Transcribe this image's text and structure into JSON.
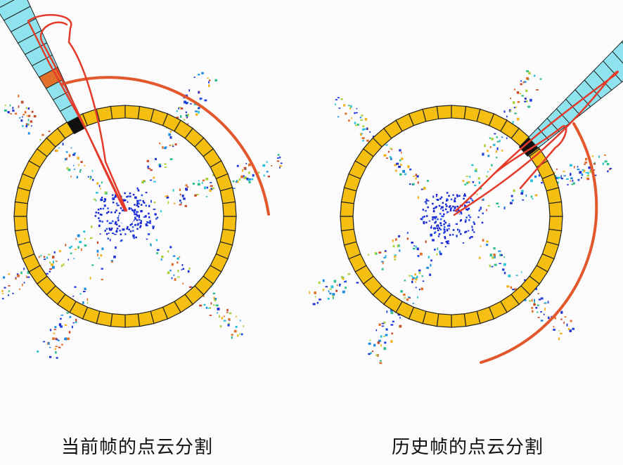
{
  "panels": [
    {
      "caption": "当前帧的点云分割",
      "ring_color": "#f5bf12",
      "highlight_color": "#8fe3ee",
      "annotation_color": "#e43a2a"
    },
    {
      "caption": "历史帧的点云分割",
      "ring_color": "#f5bf12",
      "highlight_color": "#8fe3ee",
      "annotation_color": "#e43a2a"
    }
  ]
}
